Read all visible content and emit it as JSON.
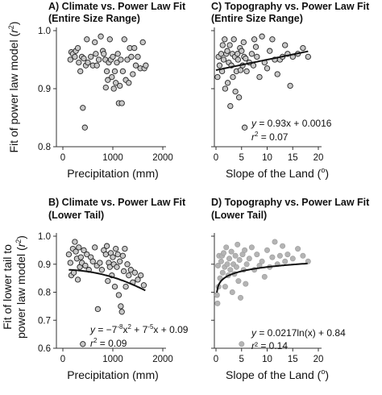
{
  "figure": {
    "ylabel_top": [
      "Fit of power law model (",
      "r",
      "2",
      ")"
    ],
    "ylabel_bottom_line1": "Fit of lower tail to",
    "ylabel_bottom_line2": [
      "power law model (",
      "r",
      "2",
      ")"
    ]
  },
  "chart_data": [
    {
      "id": "A",
      "type": "scatter",
      "title_line1": "A) Climate vs. Power Law Fit",
      "title_line2": "(Entire Size Range)",
      "xlabel": "Precipitation (mm)",
      "xlim": [
        0,
        2000
      ],
      "ylim": [
        0.8,
        1.0
      ],
      "xticks": [
        0,
        1000,
        2000
      ],
      "yticks": [
        0.8,
        0.9,
        1.0
      ],
      "xtick_labels": [
        "0",
        "1000",
        "2000"
      ],
      "ytick_labels": [
        "0.8",
        "0.9",
        "1.0"
      ],
      "marker_color": "#c8c8c8",
      "points": [
        [
          150,
          0.95
        ],
        [
          170,
          0.963
        ],
        [
          200,
          0.96
        ],
        [
          240,
          0.955
        ],
        [
          260,
          0.965
        ],
        [
          300,
          0.97
        ],
        [
          320,
          0.945
        ],
        [
          350,
          0.93
        ],
        [
          380,
          0.955
        ],
        [
          400,
          0.867
        ],
        [
          420,
          0.952
        ],
        [
          440,
          0.833
        ],
        [
          460,
          0.94
        ],
        [
          480,
          0.985
        ],
        [
          500,
          0.945
        ],
        [
          560,
          0.955
        ],
        [
          600,
          0.94
        ],
        [
          640,
          0.98
        ],
        [
          660,
          0.96
        ],
        [
          680,
          0.94
        ],
        [
          720,
          0.95
        ],
        [
          760,
          0.99
        ],
        [
          800,
          0.965
        ],
        [
          820,
          0.96
        ],
        [
          850,
          0.95
        ],
        [
          860,
          0.902
        ],
        [
          880,
          0.93
        ],
        [
          900,
          0.915
        ],
        [
          920,
          0.945
        ],
        [
          940,
          0.985
        ],
        [
          960,
          0.95
        ],
        [
          980,
          0.92
        ],
        [
          1000,
          0.955
        ],
        [
          1020,
          0.9
        ],
        [
          1040,
          0.93
        ],
        [
          1060,
          0.91
        ],
        [
          1080,
          0.945
        ],
        [
          1100,
          0.96
        ],
        [
          1120,
          0.875
        ],
        [
          1140,
          0.905
        ],
        [
          1160,
          0.95
        ],
        [
          1180,
          0.875
        ],
        [
          1200,
          0.93
        ],
        [
          1230,
          0.985
        ],
        [
          1260,
          0.915
        ],
        [
          1290,
          0.95
        ],
        [
          1320,
          0.91
        ],
        [
          1340,
          0.97
        ],
        [
          1370,
          0.955
        ],
        [
          1400,
          0.925
        ],
        [
          1430,
          0.97
        ],
        [
          1460,
          0.94
        ],
        [
          1500,
          0.955
        ],
        [
          1550,
          0.935
        ],
        [
          1600,
          0.98
        ],
        [
          1630,
          0.935
        ],
        [
          1660,
          0.94
        ]
      ]
    },
    {
      "id": "C",
      "type": "scatter",
      "title_line1": "C) Topography vs. Power Law Fit",
      "title_line2": "(Entire Size Range)",
      "xlabel": [
        "Slope of the Land (",
        "o",
        ")"
      ],
      "xlim": [
        0,
        20
      ],
      "ylim": [
        0.8,
        1.0
      ],
      "xticks": [
        0,
        5,
        10,
        15,
        20
      ],
      "yticks": [
        0.8,
        0.9,
        1.0
      ],
      "xtick_labels": [
        "0",
        "5",
        "10",
        "15",
        "20"
      ],
      "marker_color": "#c8c8c8",
      "fit": {
        "slope": 0.93,
        "intercept": 0.0016
      },
      "annotation_eq": [
        "y",
        " = 0.93x + 0.0016"
      ],
      "annotation_r2": [
        "r",
        "2",
        " = 0.07"
      ],
      "points": [
        [
          0.3,
          0.92
        ],
        [
          0.5,
          0.955
        ],
        [
          0.7,
          0.94
        ],
        [
          1,
          0.96
        ],
        [
          1.2,
          0.93
        ],
        [
          1.3,
          0.975
        ],
        [
          1.5,
          0.95
        ],
        [
          1.7,
          0.985
        ],
        [
          1.8,
          0.9
        ],
        [
          2,
          0.96
        ],
        [
          2.2,
          0.965
        ],
        [
          2.3,
          0.91
        ],
        [
          2.5,
          0.945
        ],
        [
          2.7,
          0.975
        ],
        [
          2.8,
          0.87
        ],
        [
          3,
          0.94
        ],
        [
          3.2,
          0.96
        ],
        [
          3.3,
          0.92
        ],
        [
          3.5,
          0.985
        ],
        [
          3.7,
          0.955
        ],
        [
          3.8,
          0.895
        ],
        [
          4,
          0.93
        ],
        [
          4.2,
          0.96
        ],
        [
          4.3,
          0.95
        ],
        [
          4.5,
          0.885
        ],
        [
          4.7,
          0.97
        ],
        [
          4.8,
          0.932
        ],
        [
          5,
          0.965
        ],
        [
          5.2,
          0.94
        ],
        [
          5.4,
          0.98
        ],
        [
          5.5,
          0.955
        ],
        [
          5.6,
          0.833
        ],
        [
          5.8,
          0.952
        ],
        [
          6,
          0.93
        ],
        [
          6.5,
          0.945
        ],
        [
          7,
          0.96
        ],
        [
          7.3,
          0.94
        ],
        [
          7.5,
          0.985
        ],
        [
          7.8,
          0.972
        ],
        [
          8,
          0.955
        ],
        [
          8.5,
          0.92
        ],
        [
          9,
          0.99
        ],
        [
          9.5,
          0.945
        ],
        [
          10,
          0.935
        ],
        [
          10.5,
          0.965
        ],
        [
          11,
          0.985
        ],
        [
          11.5,
          0.95
        ],
        [
          12,
          0.925
        ],
        [
          12.5,
          0.95
        ],
        [
          13,
          0.955
        ],
        [
          13.5,
          0.975
        ],
        [
          14,
          0.96
        ],
        [
          14.5,
          0.905
        ],
        [
          15,
          0.955
        ],
        [
          16,
          0.96
        ],
        [
          17,
          0.97
        ],
        [
          18,
          0.955
        ]
      ]
    },
    {
      "id": "B",
      "type": "scatter",
      "title_line1": "B) Climate vs. Power Law Fit",
      "title_line2": "(Lower Tail)",
      "xlabel": "Precipitation (mm)",
      "xlim": [
        0,
        2000
      ],
      "ylim": [
        0.6,
        1.0
      ],
      "xticks": [
        0,
        1000,
        2000
      ],
      "yticks": [
        0.6,
        0.7,
        0.8,
        0.9,
        1.0
      ],
      "xtick_labels": [
        "0",
        "1000",
        "2000"
      ],
      "ytick_labels": [
        "0.6",
        "0.7",
        "0.8",
        "0.9",
        "1.0"
      ],
      "marker_color": "#c8c8c8",
      "fit": {
        "a": -7e-08,
        "b": 7e-05,
        "c": 0.09
      },
      "annotation_eq": [
        "y",
        " = −7",
        "-8",
        "x",
        "2",
        " + 7",
        "-5",
        "x + 0.09"
      ],
      "annotation_r2": [
        "r",
        "2",
        " = 0.09"
      ],
      "points": [
        [
          120,
          0.935
        ],
        [
          150,
          0.905
        ],
        [
          170,
          0.86
        ],
        [
          200,
          0.955
        ],
        [
          220,
          0.87
        ],
        [
          240,
          0.98
        ],
        [
          260,
          0.945
        ],
        [
          280,
          0.92
        ],
        [
          300,
          0.845
        ],
        [
          320,
          0.96
        ],
        [
          340,
          0.89
        ],
        [
          360,
          0.925
        ],
        [
          380,
          0.905
        ],
        [
          400,
          0.615
        ],
        [
          420,
          0.95
        ],
        [
          450,
          0.895
        ],
        [
          480,
          0.935
        ],
        [
          520,
          0.88
        ],
        [
          560,
          0.925
        ],
        [
          600,
          0.91
        ],
        [
          640,
          0.96
        ],
        [
          680,
          0.895
        ],
        [
          700,
          0.74
        ],
        [
          740,
          0.905
        ],
        [
          780,
          0.88
        ],
        [
          820,
          0.95
        ],
        [
          860,
          0.935
        ],
        [
          880,
          0.965
        ],
        [
          900,
          0.84
        ],
        [
          920,
          0.905
        ],
        [
          940,
          0.89
        ],
        [
          960,
          0.94
        ],
        [
          980,
          0.86
        ],
        [
          1000,
          0.925
        ],
        [
          1020,
          0.9
        ],
        [
          1040,
          0.82
        ],
        [
          1060,
          0.955
        ],
        [
          1080,
          0.89
        ],
        [
          1100,
          0.935
        ],
        [
          1120,
          0.79
        ],
        [
          1140,
          0.91
        ],
        [
          1160,
          0.75
        ],
        [
          1180,
          0.73
        ],
        [
          1200,
          0.93
        ],
        [
          1220,
          0.875
        ],
        [
          1240,
          0.955
        ],
        [
          1260,
          0.82
        ],
        [
          1290,
          0.9
        ],
        [
          1320,
          0.86
        ],
        [
          1360,
          0.88
        ],
        [
          1400,
          0.835
        ],
        [
          1440,
          0.87
        ],
        [
          1500,
          0.845
        ],
        [
          1560,
          0.86
        ],
        [
          1620,
          0.825
        ]
      ]
    },
    {
      "id": "D",
      "type": "scatter",
      "title_line1": "D) Topography vs. Power Law Fit",
      "title_line2": "(Lower Tail)",
      "xlabel": [
        "Slope of the Land (",
        "o",
        ")"
      ],
      "xlim": [
        0,
        20
      ],
      "ylim": [
        0.6,
        1.0
      ],
      "xticks": [
        0,
        5,
        10,
        15,
        20
      ],
      "yticks": [
        0.6,
        0.7,
        0.8,
        0.9,
        1.0
      ],
      "xtick_labels": [
        "0",
        "5",
        "10",
        "15",
        "20"
      ],
      "marker_color": "#b4b4b4",
      "fit": {
        "a": 0.0217,
        "b": 0.84
      },
      "annotation_eq": [
        "y",
        " = 0.0217ln(x) + 0.84"
      ],
      "annotation_r2": [
        "r",
        "² = 0.14"
      ],
      "points": [
        [
          0.2,
          0.79
        ],
        [
          0.3,
          0.76
        ],
        [
          0.4,
          0.895
        ],
        [
          0.5,
          0.82
        ],
        [
          0.6,
          0.93
        ],
        [
          0.8,
          0.85
        ],
        [
          1,
          0.91
        ],
        [
          1.2,
          0.93
        ],
        [
          1.3,
          0.87
        ],
        [
          1.5,
          0.94
        ],
        [
          1.7,
          0.89
        ],
        [
          1.8,
          0.82
        ],
        [
          2,
          0.96
        ],
        [
          2.2,
          0.9
        ],
        [
          2.4,
          0.86
        ],
        [
          2.6,
          0.92
        ],
        [
          2.8,
          0.88
        ],
        [
          3,
          0.945
        ],
        [
          3.2,
          0.8
        ],
        [
          3.4,
          0.9
        ],
        [
          3.6,
          0.865
        ],
        [
          3.8,
          0.93
        ],
        [
          4,
          0.89
        ],
        [
          4.2,
          0.97
        ],
        [
          4.4,
          0.84
        ],
        [
          4.6,
          0.915
        ],
        [
          4.8,
          0.78
        ],
        [
          5,
          0.615
        ],
        [
          5.2,
          0.935
        ],
        [
          5.4,
          0.88
        ],
        [
          5.6,
          0.95
        ],
        [
          5.8,
          0.83
        ],
        [
          6,
          0.9
        ],
        [
          6.5,
          0.92
        ],
        [
          7,
          0.96
        ],
        [
          7.5,
          0.88
        ],
        [
          8,
          0.935
        ],
        [
          8.5,
          0.895
        ],
        [
          9,
          0.91
        ],
        [
          9.5,
          0.855
        ],
        [
          10,
          0.95
        ],
        [
          10.5,
          0.89
        ],
        [
          11,
          0.925
        ],
        [
          11.5,
          0.98
        ],
        [
          12,
          0.9
        ],
        [
          12.5,
          0.93
        ],
        [
          13,
          0.965
        ],
        [
          13.5,
          0.91
        ],
        [
          14,
          0.935
        ],
        [
          15,
          0.92
        ],
        [
          16,
          0.955
        ],
        [
          17,
          0.93
        ],
        [
          18,
          0.91
        ]
      ]
    }
  ]
}
